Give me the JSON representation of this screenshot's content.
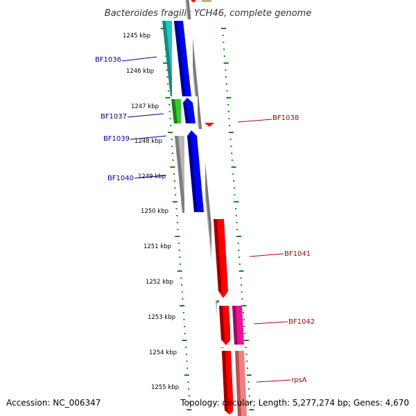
{
  "title": "Bacteroides fragilis YCH46, complete genome",
  "accession": "Accession: NC_006347",
  "topology": "Topology: circular; Length: 5,277,274 bp; Genes: 4,670",
  "kbp_labels": [
    "1245 kbp",
    "1246 kbp",
    "1247 kbp",
    "1248 kbp",
    "1249 kbp",
    "1250 kbp",
    "1251 kbp",
    "1252 kbp",
    "1253 kbp",
    "1254 kbp",
    "1255 kbp"
  ],
  "left_genes": [
    "BF1036",
    "BF1037",
    "BF1039",
    "BF1040"
  ],
  "right_genes": [
    "BF1038",
    "BF1041",
    "BF1042",
    "rpsA"
  ],
  "colors": {
    "forward_blue": "#0000ff",
    "reverse_red": "#ff0000",
    "cyan": "#20c8c8",
    "green": "#33cc33",
    "gray": "#b8b8b8",
    "magenta": "#ee1199",
    "salmon": "#f08080",
    "tick_green": "#118811",
    "left_label": "#00008b",
    "right_label": "#b00000",
    "backbone": "#888888"
  }
}
